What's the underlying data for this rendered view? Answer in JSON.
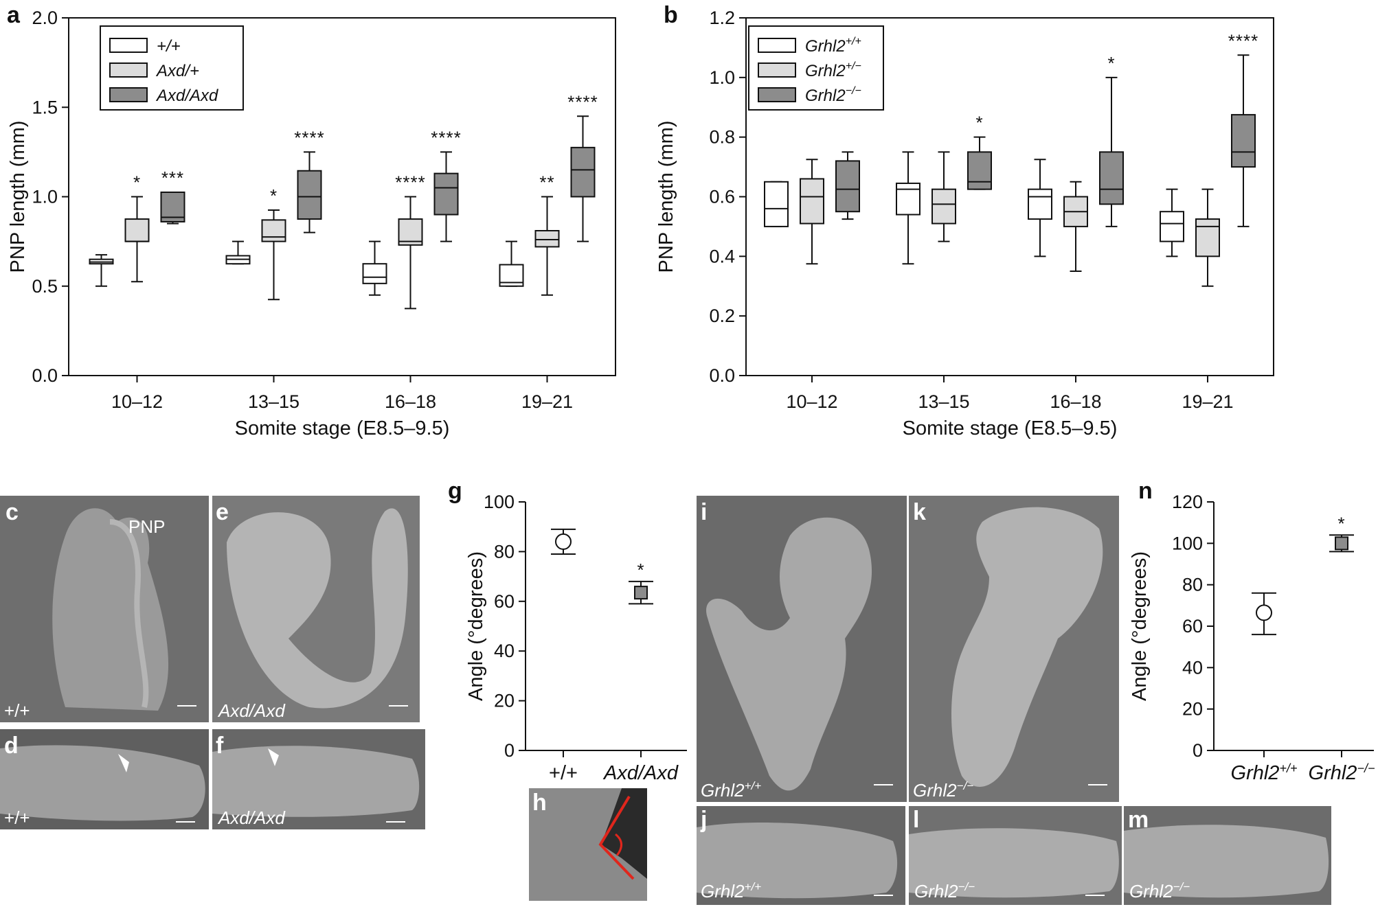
{
  "chart_data": [
    {
      "panel": "a",
      "type": "boxplot",
      "ylabel": "PNP length (mm)",
      "xlabel": "Somite stage (E8.5–9.5)",
      "ylim": [
        0.0,
        2.0
      ],
      "yticks": [
        "0.0",
        "0.5",
        "1.0",
        "1.5",
        "2.0"
      ],
      "categories": [
        "10–12",
        "13–15",
        "16–18",
        "19–21"
      ],
      "legend": [
        "+/+",
        "Axd/+",
        "Axd/Axd"
      ],
      "series": [
        {
          "name": "+/+",
          "color": "#ffffff",
          "boxes": [
            {
              "min": 0.5,
              "q1": 0.625,
              "median": 0.635,
              "q3": 0.65,
              "max": 0.675,
              "sig": ""
            },
            {
              "min": 0.625,
              "q1": 0.625,
              "median": 0.65,
              "q3": 0.67,
              "max": 0.75,
              "sig": ""
            },
            {
              "min": 0.45,
              "q1": 0.515,
              "median": 0.55,
              "q3": 0.625,
              "max": 0.75,
              "sig": ""
            },
            {
              "min": 0.5,
              "q1": 0.5,
              "median": 0.52,
              "q3": 0.62,
              "max": 0.75,
              "sig": ""
            }
          ]
        },
        {
          "name": "Axd/+",
          "color": "#dcdcdc",
          "boxes": [
            {
              "min": 0.525,
              "q1": 0.75,
              "median": 0.75,
              "q3": 0.875,
              "max": 1.0,
              "sig": "*"
            },
            {
              "min": 0.425,
              "q1": 0.75,
              "median": 0.775,
              "q3": 0.87,
              "max": 0.925,
              "sig": "*"
            },
            {
              "min": 0.375,
              "q1": 0.73,
              "median": 0.75,
              "q3": 0.875,
              "max": 1.0,
              "sig": "****"
            },
            {
              "min": 0.45,
              "q1": 0.72,
              "median": 0.76,
              "q3": 0.81,
              "max": 1.0,
              "sig": "**"
            }
          ]
        },
        {
          "name": "Axd/Axd",
          "color": "#8c8c8c",
          "boxes": [
            {
              "min": 0.85,
              "q1": 0.86,
              "median": 0.885,
              "q3": 1.025,
              "max": 1.025,
              "sig": "***"
            },
            {
              "min": 0.8,
              "q1": 0.875,
              "median": 1.0,
              "q3": 1.145,
              "max": 1.25,
              "sig": "****"
            },
            {
              "min": 0.75,
              "q1": 0.9,
              "median": 1.05,
              "q3": 1.13,
              "max": 1.25,
              "sig": "****"
            },
            {
              "min": 0.75,
              "q1": 1.0,
              "median": 1.15,
              "q3": 1.275,
              "max": 1.45,
              "sig": "****"
            }
          ]
        }
      ]
    },
    {
      "panel": "b",
      "type": "boxplot",
      "ylabel": "PNP length (mm)",
      "xlabel": "Somite stage (E8.5–9.5)",
      "ylim": [
        0.0,
        1.2
      ],
      "yticks": [
        "0.0",
        "0.2",
        "0.4",
        "0.6",
        "0.8",
        "1.0",
        "1.2"
      ],
      "categories": [
        "10–12",
        "13–15",
        "16–18",
        "19–21"
      ],
      "legend": [
        {
          "base": "Grhl2",
          "sup": "+/+"
        },
        {
          "base": "Grhl2",
          "sup": "+/−"
        },
        {
          "base": "Grhl2",
          "sup": "−/−"
        }
      ],
      "series": [
        {
          "name": "Grhl2+/+",
          "color": "#ffffff",
          "boxes": [
            {
              "min": 0.5,
              "q1": 0.5,
              "median": 0.56,
              "q3": 0.65,
              "max": 0.65,
              "sig": ""
            },
            {
              "min": 0.375,
              "q1": 0.54,
              "median": 0.625,
              "q3": 0.645,
              "max": 0.75,
              "sig": ""
            },
            {
              "min": 0.4,
              "q1": 0.525,
              "median": 0.6,
              "q3": 0.625,
              "max": 0.725,
              "sig": ""
            },
            {
              "min": 0.4,
              "q1": 0.45,
              "median": 0.51,
              "q3": 0.55,
              "max": 0.625,
              "sig": ""
            }
          ]
        },
        {
          "name": "Grhl2+/-",
          "color": "#dcdcdc",
          "boxes": [
            {
              "min": 0.375,
              "q1": 0.51,
              "median": 0.6,
              "q3": 0.66,
              "max": 0.725,
              "sig": ""
            },
            {
              "min": 0.45,
              "q1": 0.51,
              "median": 0.575,
              "q3": 0.625,
              "max": 0.75,
              "sig": ""
            },
            {
              "min": 0.35,
              "q1": 0.5,
              "median": 0.55,
              "q3": 0.6,
              "max": 0.65,
              "sig": ""
            },
            {
              "min": 0.3,
              "q1": 0.4,
              "median": 0.5,
              "q3": 0.525,
              "max": 0.625,
              "sig": ""
            }
          ]
        },
        {
          "name": "Grhl2-/-",
          "color": "#8c8c8c",
          "boxes": [
            {
              "min": 0.525,
              "q1": 0.55,
              "median": 0.625,
              "q3": 0.72,
              "max": 0.75,
              "sig": ""
            },
            {
              "min": 0.625,
              "q1": 0.625,
              "median": 0.65,
              "q3": 0.75,
              "max": 0.8,
              "sig": "*"
            },
            {
              "min": 0.5,
              "q1": 0.575,
              "median": 0.625,
              "q3": 0.75,
              "max": 1.0,
              "sig": "*"
            },
            {
              "min": 0.5,
              "q1": 0.7,
              "median": 0.75,
              "q3": 0.875,
              "max": 1.075,
              "sig": "****"
            }
          ]
        }
      ]
    },
    {
      "panel": "g",
      "type": "errorbar",
      "ylabel": "Angle (°degrees)",
      "ylim": [
        0,
        100
      ],
      "yticks": [
        "0",
        "20",
        "40",
        "60",
        "80",
        "100"
      ],
      "categories": [
        "+/+",
        "Axd/Axd"
      ],
      "points": [
        {
          "name": "+/+",
          "mean": 84,
          "lo": 79,
          "hi": 89,
          "marker": "circle",
          "sig": ""
        },
        {
          "name": "Axd/Axd",
          "mean": 63.5,
          "lo": 59,
          "hi": 68,
          "marker": "square",
          "sig": "*"
        }
      ]
    },
    {
      "panel": "n",
      "type": "errorbar",
      "ylabel": "Angle (°degrees)",
      "ylim": [
        0,
        120
      ],
      "yticks": [
        "0",
        "20",
        "40",
        "60",
        "80",
        "100",
        "120"
      ],
      "categories": [
        {
          "base": "Grhl2",
          "sup": "+/+"
        },
        {
          "base": "Grhl2",
          "sup": "−/−"
        }
      ],
      "points": [
        {
          "name": "Grhl2+/+",
          "mean": 66.5,
          "lo": 56,
          "hi": 76,
          "marker": "circle",
          "sig": ""
        },
        {
          "name": "Grhl2-/-",
          "mean": 100,
          "lo": 96,
          "hi": 104,
          "marker": "square",
          "sig": "*"
        }
      ]
    }
  ],
  "panel_letters": {
    "a": "a",
    "b": "b",
    "c": "c",
    "d": "d",
    "e": "e",
    "f": "f",
    "g": "g",
    "h": "h",
    "i": "i",
    "j": "j",
    "k": "k",
    "l": "l",
    "m": "m",
    "n": "n"
  },
  "photo_labels": {
    "c_pnp": "PNP",
    "c": "+/+",
    "d": "+/+",
    "e": "Axd/Axd",
    "f": "Axd/Axd",
    "i": {
      "base": "Grhl2",
      "sup": "+/+"
    },
    "j": {
      "base": "Grhl2",
      "sup": "+/+"
    },
    "k": {
      "base": "Grhl2",
      "sup": "−/−"
    },
    "l": {
      "base": "Grhl2",
      "sup": "−/−"
    },
    "m": {
      "base": "Grhl2",
      "sup": "−/−"
    }
  },
  "colors": {
    "wt": "#ffffff",
    "het": "#dcdcdc",
    "mut": "#8c8c8c",
    "angle_line": "#e0261c"
  }
}
